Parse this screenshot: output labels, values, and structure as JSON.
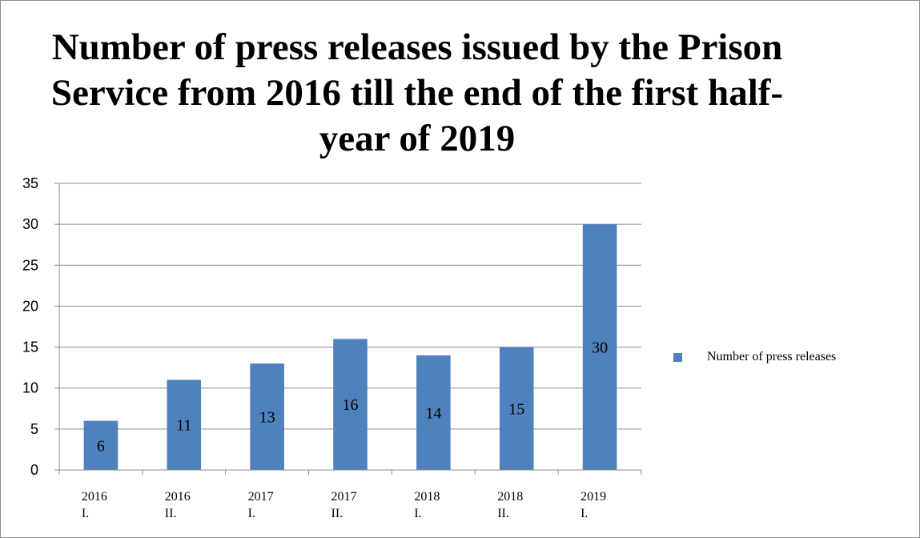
{
  "chart_data": {
    "type": "bar",
    "title": "Number of press releases issued by the Prison Service from 2016 till the end of the first half-year of 2019",
    "categories": [
      [
        "2016",
        "I."
      ],
      [
        "2016",
        "II."
      ],
      [
        "2017",
        "I."
      ],
      [
        "2017",
        "II."
      ],
      [
        "2018",
        "I."
      ],
      [
        "2018",
        "II."
      ],
      [
        "2019",
        "I."
      ]
    ],
    "series": [
      {
        "name": "Number of press releases",
        "values": [
          6,
          11,
          13,
          16,
          14,
          15,
          30
        ],
        "color": "#4f81bd"
      }
    ],
    "ylim": [
      0,
      35
    ],
    "yticks": [
      0,
      5,
      10,
      15,
      20,
      25,
      30,
      35
    ],
    "grid": true,
    "data_labels": true,
    "legend": "right"
  }
}
